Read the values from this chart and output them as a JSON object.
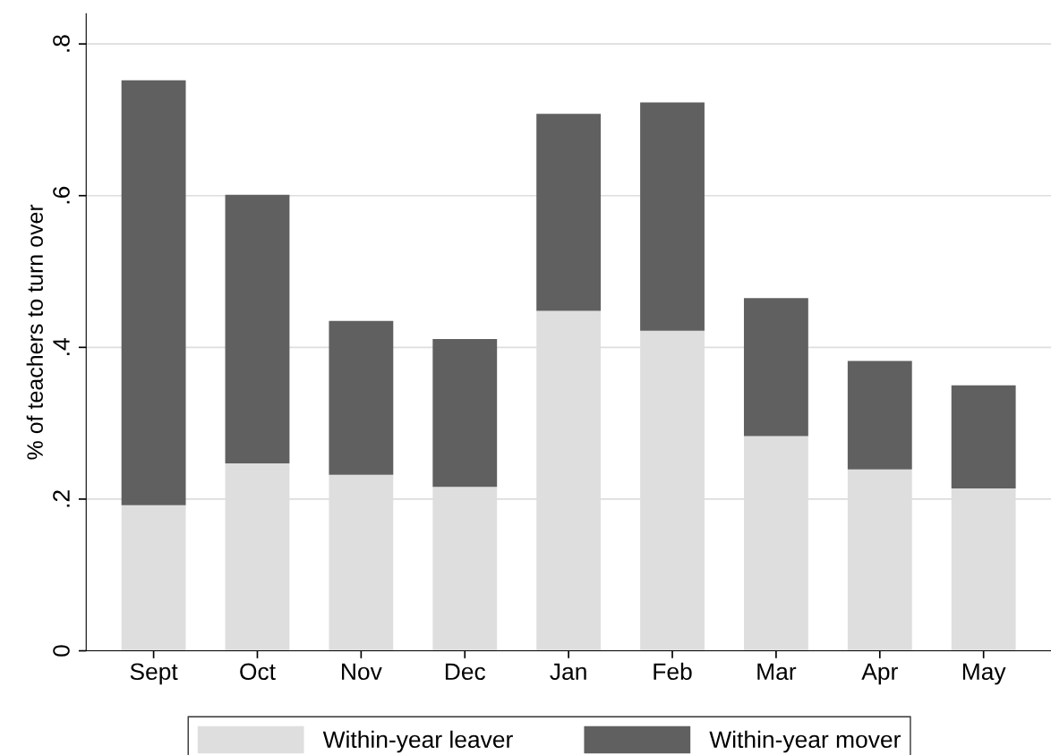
{
  "chart_data": {
    "type": "bar",
    "stacked": true,
    "ylabel": "% of teachers to turn over",
    "categories": [
      "Sept",
      "Oct",
      "Nov",
      "Dec",
      "Jan",
      "Feb",
      "Mar",
      "Apr",
      "May"
    ],
    "series": [
      {
        "name": "Within-year leaver",
        "color": "#dedede",
        "values": [
          0.192,
          0.247,
          0.232,
          0.216,
          0.448,
          0.422,
          0.283,
          0.239,
          0.214
        ]
      },
      {
        "name": "Within-year mover",
        "color": "#606060",
        "values": [
          0.56,
          0.354,
          0.203,
          0.195,
          0.26,
          0.301,
          0.182,
          0.143,
          0.136
        ]
      }
    ],
    "ylim": [
      0,
      0.84
    ],
    "yticks": [
      {
        "value": 0,
        "label": "0"
      },
      {
        "value": 0.2,
        "label": ".2"
      },
      {
        "value": 0.4,
        "label": ".4"
      },
      {
        "value": 0.6,
        "label": ".6"
      },
      {
        "value": 0.8,
        "label": ".8"
      }
    ],
    "grid": "y",
    "legend": "bottom"
  }
}
